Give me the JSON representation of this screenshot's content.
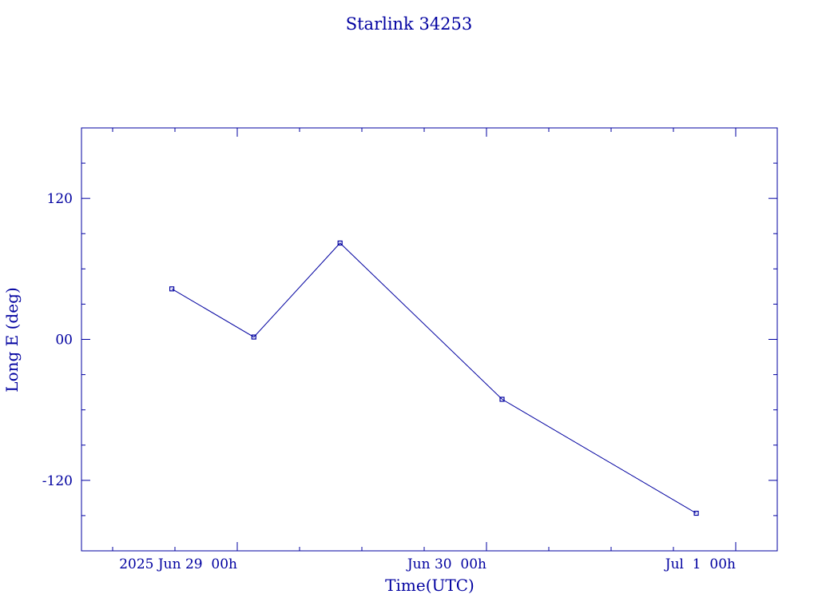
{
  "chart_data": {
    "type": "line",
    "title": "Starlink 34253",
    "xlabel": "Time(UTC)",
    "ylabel": "Long E (deg)",
    "x_ticks": [
      {
        "label": "2025 Jun 29  00h",
        "value": 0
      },
      {
        "label": "Jun 30  00h",
        "value": 24
      },
      {
        "label": "Jul  1  00h",
        "value": 48
      }
    ],
    "y_ticks": [
      {
        "label": "120",
        "value": 120
      },
      {
        "label": "00",
        "value": 0
      },
      {
        "label": "-120",
        "value": -120
      }
    ],
    "xlim": [
      -15,
      52
    ],
    "ylim": [
      -180,
      180
    ],
    "x_minor_step": 6,
    "y_minor_step": 30,
    "series": [
      {
        "name": "",
        "x": [
          -6.3,
          1.6,
          9.9,
          25.5,
          44.2
        ],
        "values": [
          43,
          2,
          82,
          -51,
          -148
        ]
      }
    ],
    "colors": {
      "ink": "#0000a0"
    },
    "grid": false
  }
}
